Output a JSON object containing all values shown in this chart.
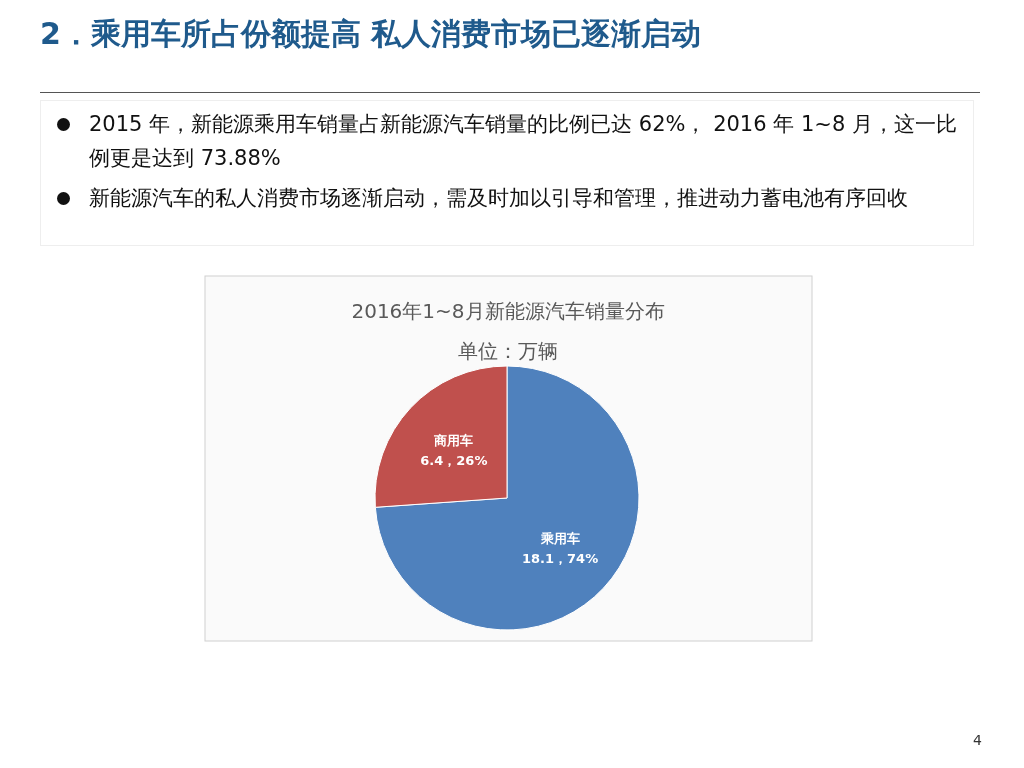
{
  "chart_data": {
    "type": "pie",
    "title": "2016年1~8月新能源汽车销量分布",
    "subtitle": "单位：万辆",
    "categories": [
      "乘用车",
      "商用车"
    ],
    "values": [
      18.1,
      6.4
    ],
    "colors": [
      "#4f81bd",
      "#c0504d"
    ],
    "value_labels": [
      "18.1，74%",
      "6.4，26%"
    ],
    "annotations": [
      "2．乘用车所占份额提高 私人消费市场已逐渐启动",
      "2015 年，新能源乘用车销量占新能源汽车销量的比例已达 62%， 2016 年 1~8 月，这一比例更是达到 73.88%",
      "新能源汽车的私人消费市场逐渐启动，需及时加以引导和管理，推进动力蓄电池有序回收",
      "4"
    ],
    "legend": false
  }
}
